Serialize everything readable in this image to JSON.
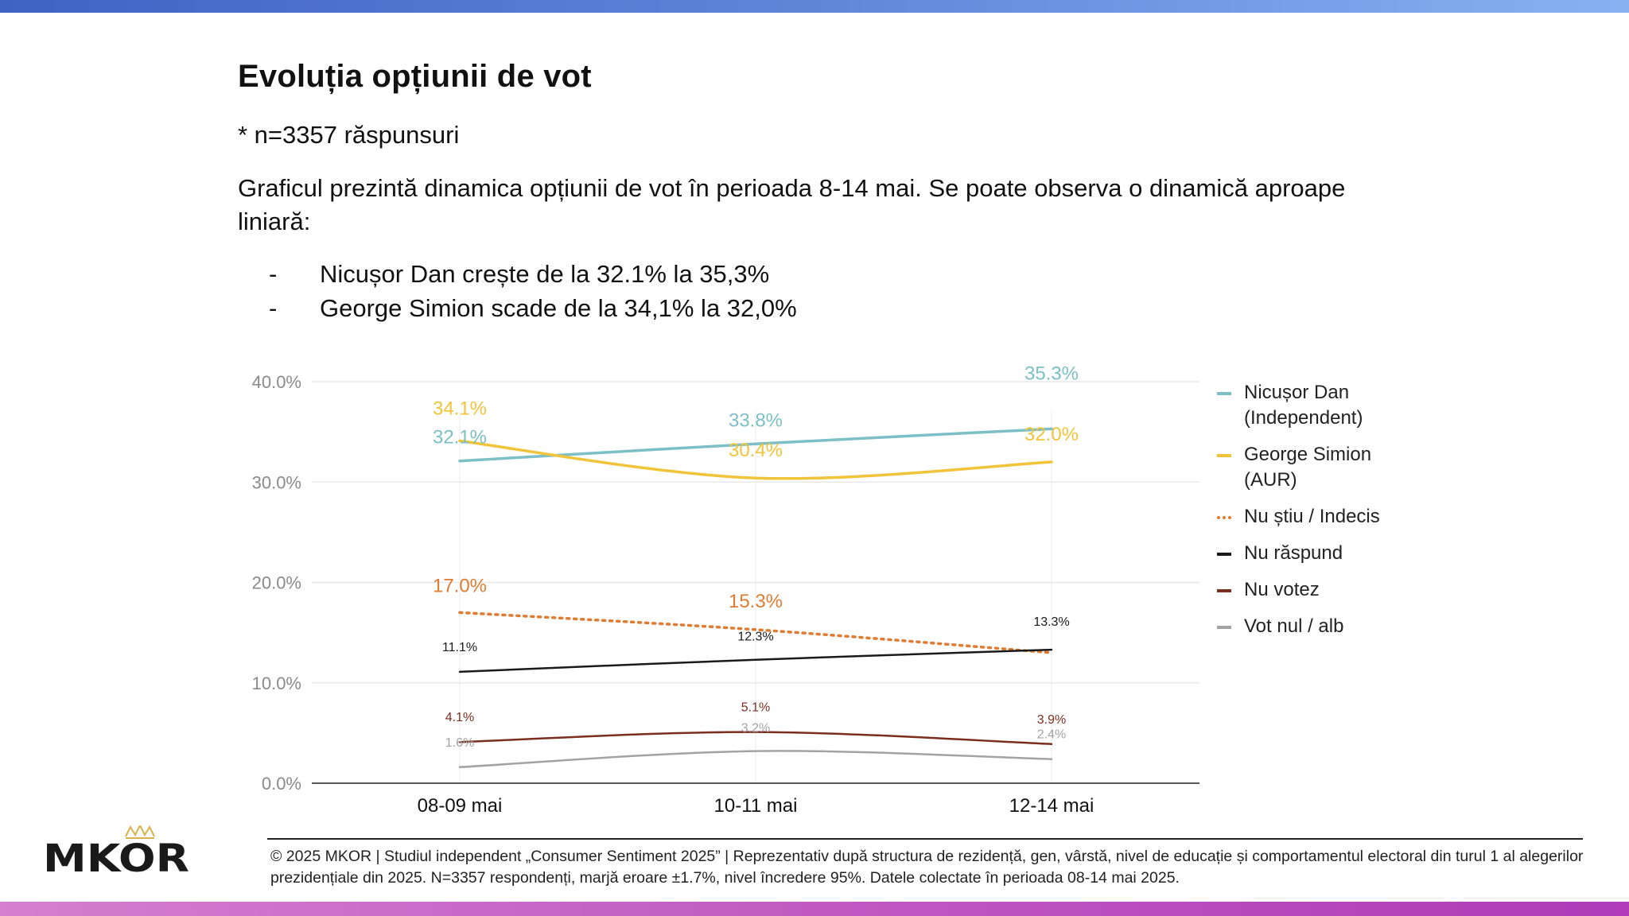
{
  "title": "Evoluția opțiunii de vot",
  "sample": "* n=3357 răspunsuri",
  "description": "Graficul prezintă dinamica opțiunii de vot în perioada 8-14 mai. Se poate observa o dinamică aproape liniară:",
  "bullets": [
    {
      "dash": "-",
      "text": "Nicușor Dan crește de la 32.1% la 35,3%"
    },
    {
      "dash": "-",
      "text": "George Simion scade de la 34,1% la 32,0%"
    }
  ],
  "chart_data": {
    "type": "line",
    "title": "",
    "xlabel": "",
    "ylabel": "",
    "categories": [
      "08-09 mai",
      "10-11 mai",
      "12-14 mai"
    ],
    "ylim": [
      0,
      40
    ],
    "yticks": [
      0,
      10,
      20,
      30,
      40
    ],
    "ytick_labels": [
      "0.0%",
      "10.0%",
      "20.0%",
      "30.0%",
      "40.0%"
    ],
    "grid": true,
    "legend_position": "right",
    "series": [
      {
        "name": "Nicușor Dan (Independent)",
        "values": [
          32.1,
          33.8,
          35.3
        ],
        "labels": [
          "32.1%",
          "33.8%",
          "35.3%"
        ],
        "color": "#7cbfc6",
        "style": "solid",
        "label_size": "large"
      },
      {
        "name": "George Simion (AUR)",
        "values": [
          34.1,
          30.4,
          32.0
        ],
        "labels": [
          "34.1%",
          "30.4%",
          "32.0%"
        ],
        "color": "#f0c43a",
        "style": "solid",
        "label_size": "large"
      },
      {
        "name": "Nu știu / Indecis",
        "values": [
          17.0,
          15.3,
          13.0
        ],
        "labels": [
          "17.0%",
          "15.3%",
          ""
        ],
        "color": "#e07b32",
        "style": "dotted",
        "label_size": "large"
      },
      {
        "name": "Nu răspund",
        "values": [
          11.1,
          12.3,
          13.3
        ],
        "labels": [
          "11.1%",
          "12.3%",
          "13.3%"
        ],
        "color": "#1a1a1a",
        "style": "solid",
        "label_size": "small"
      },
      {
        "name": "Nu votez",
        "values": [
          4.1,
          5.1,
          3.9
        ],
        "labels": [
          "4.1%",
          "5.1%",
          "3.9%"
        ],
        "color": "#7a2e1e",
        "style": "solid",
        "label_size": "small"
      },
      {
        "name": "Vot nul / alb",
        "values": [
          1.6,
          3.2,
          2.4
        ],
        "labels": [
          "1.6%",
          "3.2%",
          "2.4%"
        ],
        "color": "#a3a3a3",
        "style": "solid",
        "label_size": "small"
      }
    ]
  },
  "legend": [
    {
      "label": "Nicușor Dan (Independent)",
      "color": "#7cbfc6",
      "style": "solid"
    },
    {
      "label": "George Simion (AUR)",
      "color": "#f0c43a",
      "style": "solid"
    },
    {
      "label": "Nu știu / Indecis",
      "color": "#e07b32",
      "style": "dotted"
    },
    {
      "label": "Nu răspund",
      "color": "#1a1a1a",
      "style": "solid"
    },
    {
      "label": "Nu votez",
      "color": "#7a2e1e",
      "style": "solid"
    },
    {
      "label": "Vot nul / alb",
      "color": "#a3a3a3",
      "style": "solid"
    }
  ],
  "footnote": "© 2025 MKOR | Studiul independent „Consumer Sentiment 2025” | Reprezentativ după structura de rezidență, gen, vârstă, nivel de educație și comportamentul electoral din turul 1 al alegerilor prezidențiale din 2025. N=3357 respondenți, marjă eroare ±1.7%, nivel încredere 95%. Datele colectate în perioada 08-14 mai 2025.",
  "logo": {
    "text": "MKOR",
    "color": "#1a1a1a",
    "accent": "#d8b24a"
  }
}
